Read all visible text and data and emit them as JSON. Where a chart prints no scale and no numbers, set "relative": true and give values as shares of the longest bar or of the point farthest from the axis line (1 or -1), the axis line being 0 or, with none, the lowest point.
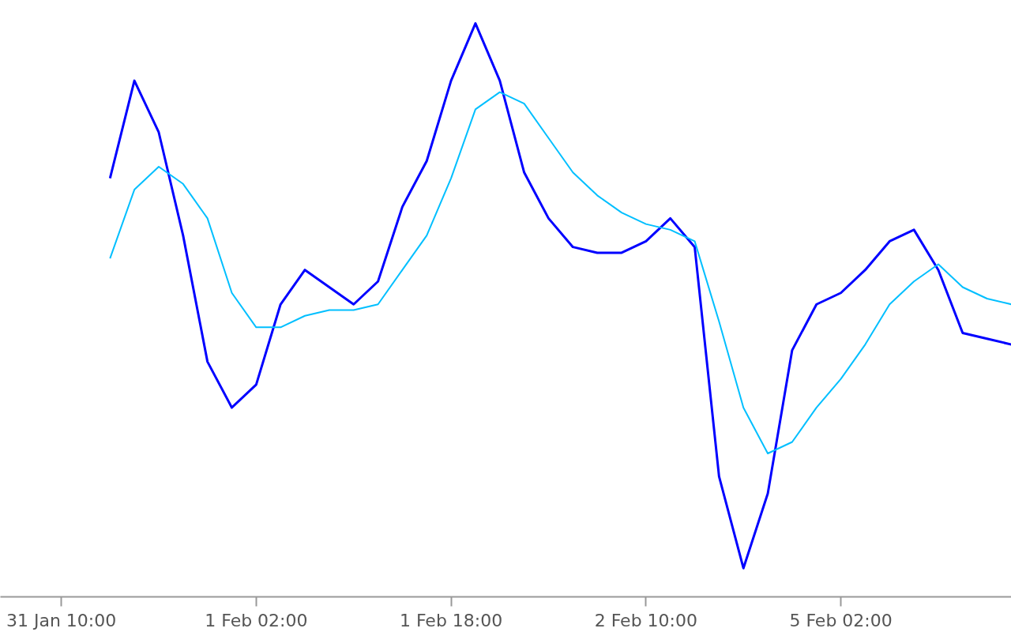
{
  "chart_data": {
    "type": "line",
    "relative": true,
    "grid": false,
    "categories": [
      "31 Jan 10:00",
      null,
      null,
      null,
      null,
      null,
      null,
      null,
      "1 Feb 02:00",
      null,
      null,
      null,
      null,
      null,
      null,
      null,
      "1 Feb 18:00",
      null,
      null,
      null,
      null,
      null,
      null,
      null,
      "2 Feb 10:00",
      null,
      null,
      null,
      null,
      null,
      null,
      null,
      "5 Feb 02:00",
      null,
      null,
      null,
      null,
      null,
      null,
      null
    ],
    "series": [
      {
        "color": "#0000ff",
        "values": [
          null,
          null,
          0.73,
          0.9,
          0.81,
          0.63,
          0.41,
          0.33,
          0.37,
          0.51,
          0.57,
          0.54,
          0.51,
          0.55,
          0.68,
          0.76,
          0.9,
          1.0,
          0.9,
          0.74,
          0.66,
          0.61,
          0.6,
          0.6,
          0.62,
          0.66,
          0.61,
          0.21,
          0.05,
          0.18,
          0.43,
          0.51,
          0.53,
          0.57,
          0.62,
          0.64,
          0.57,
          0.46,
          0.45,
          0.44
        ]
      },
      {
        "color": "#00bfff",
        "values": [
          null,
          null,
          0.59,
          0.71,
          0.75,
          0.72,
          0.66,
          0.53,
          0.47,
          0.47,
          0.49,
          0.5,
          0.5,
          0.51,
          0.57,
          0.63,
          0.73,
          0.85,
          0.88,
          0.86,
          0.8,
          0.74,
          0.7,
          0.67,
          0.65,
          0.64,
          0.62,
          0.48,
          0.33,
          0.25,
          0.27,
          0.33,
          0.38,
          0.44,
          0.51,
          0.55,
          0.58,
          0.54,
          0.52,
          0.51
        ]
      }
    ]
  }
}
